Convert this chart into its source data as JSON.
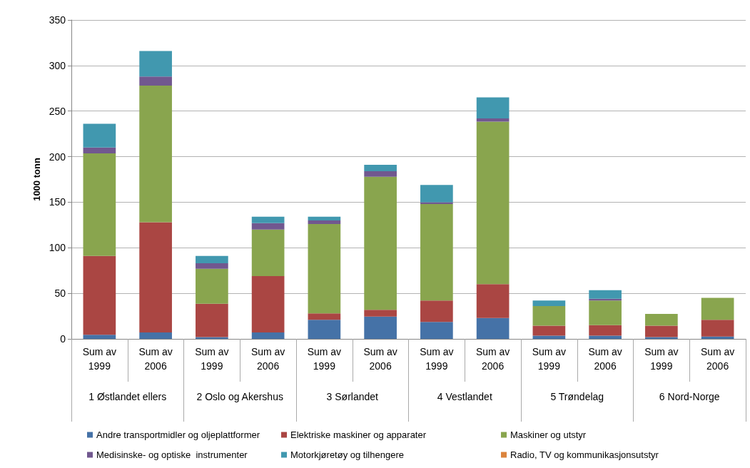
{
  "chart_data": {
    "type": "bar",
    "stacked": true,
    "ylabel": "1000 tonn",
    "categories": [
      "Sum av 1999",
      "Sum av 2006",
      "Sum av 1999",
      "Sum av 2006",
      "Sum av 1999",
      "Sum av 2006",
      "Sum av 1999",
      "Sum av 2006",
      "Sum av 1999",
      "Sum av 2006",
      "Sum av 1999",
      "Sum av 2006"
    ],
    "annotations": [
      "1 Østlandet ellers",
      "2 Oslo og Akershus",
      "3 Sørlandet",
      "4 Vestlandet",
      "5 Trøndelag",
      "6 Nord-Norge"
    ],
    "series": [
      {
        "name": "Andre transportmidler og oljeplattformer",
        "color": "#4572a7",
        "values": [
          4.5,
          7,
          2,
          7,
          21,
          24.5,
          18.5,
          23,
          3.5,
          3.5,
          2,
          2.5
        ]
      },
      {
        "name": "Elektriske maskiner og apparater",
        "color": "#aa4643",
        "values": [
          86.5,
          121,
          36.5,
          62,
          7,
          7.5,
          23.5,
          37,
          11,
          11.5,
          12.5,
          18.5
        ]
      },
      {
        "name": "Maskiner og utstyr",
        "color": "#89a54e",
        "values": [
          112.5,
          150,
          38.5,
          51,
          98,
          146,
          106,
          178.5,
          21.5,
          27,
          13,
          24
        ]
      },
      {
        "name": "Medisinske- og optiske  instrumenter",
        "color": "#71588f",
        "values": [
          6.5,
          10,
          6,
          7,
          4,
          6,
          2,
          3.5,
          null,
          2,
          null,
          null
        ]
      },
      {
        "name": "Motorkjøretøy og tilhengere",
        "color": "#4198af",
        "values": [
          26,
          28,
          8,
          7,
          4,
          7,
          19,
          23,
          6,
          9.5,
          null,
          null
        ]
      },
      {
        "name": "Radio, TV og kommunikasjonsutstyr",
        "color": "#db843d",
        "values": [
          null,
          null,
          null,
          null,
          null,
          null,
          null,
          null,
          null,
          null,
          null,
          null
        ]
      }
    ],
    "ylim": [
      0,
      350
    ],
    "yticks": [
      0,
      50,
      100,
      150,
      200,
      250,
      300,
      350
    ],
    "grid": "y",
    "legend": "bottom"
  }
}
